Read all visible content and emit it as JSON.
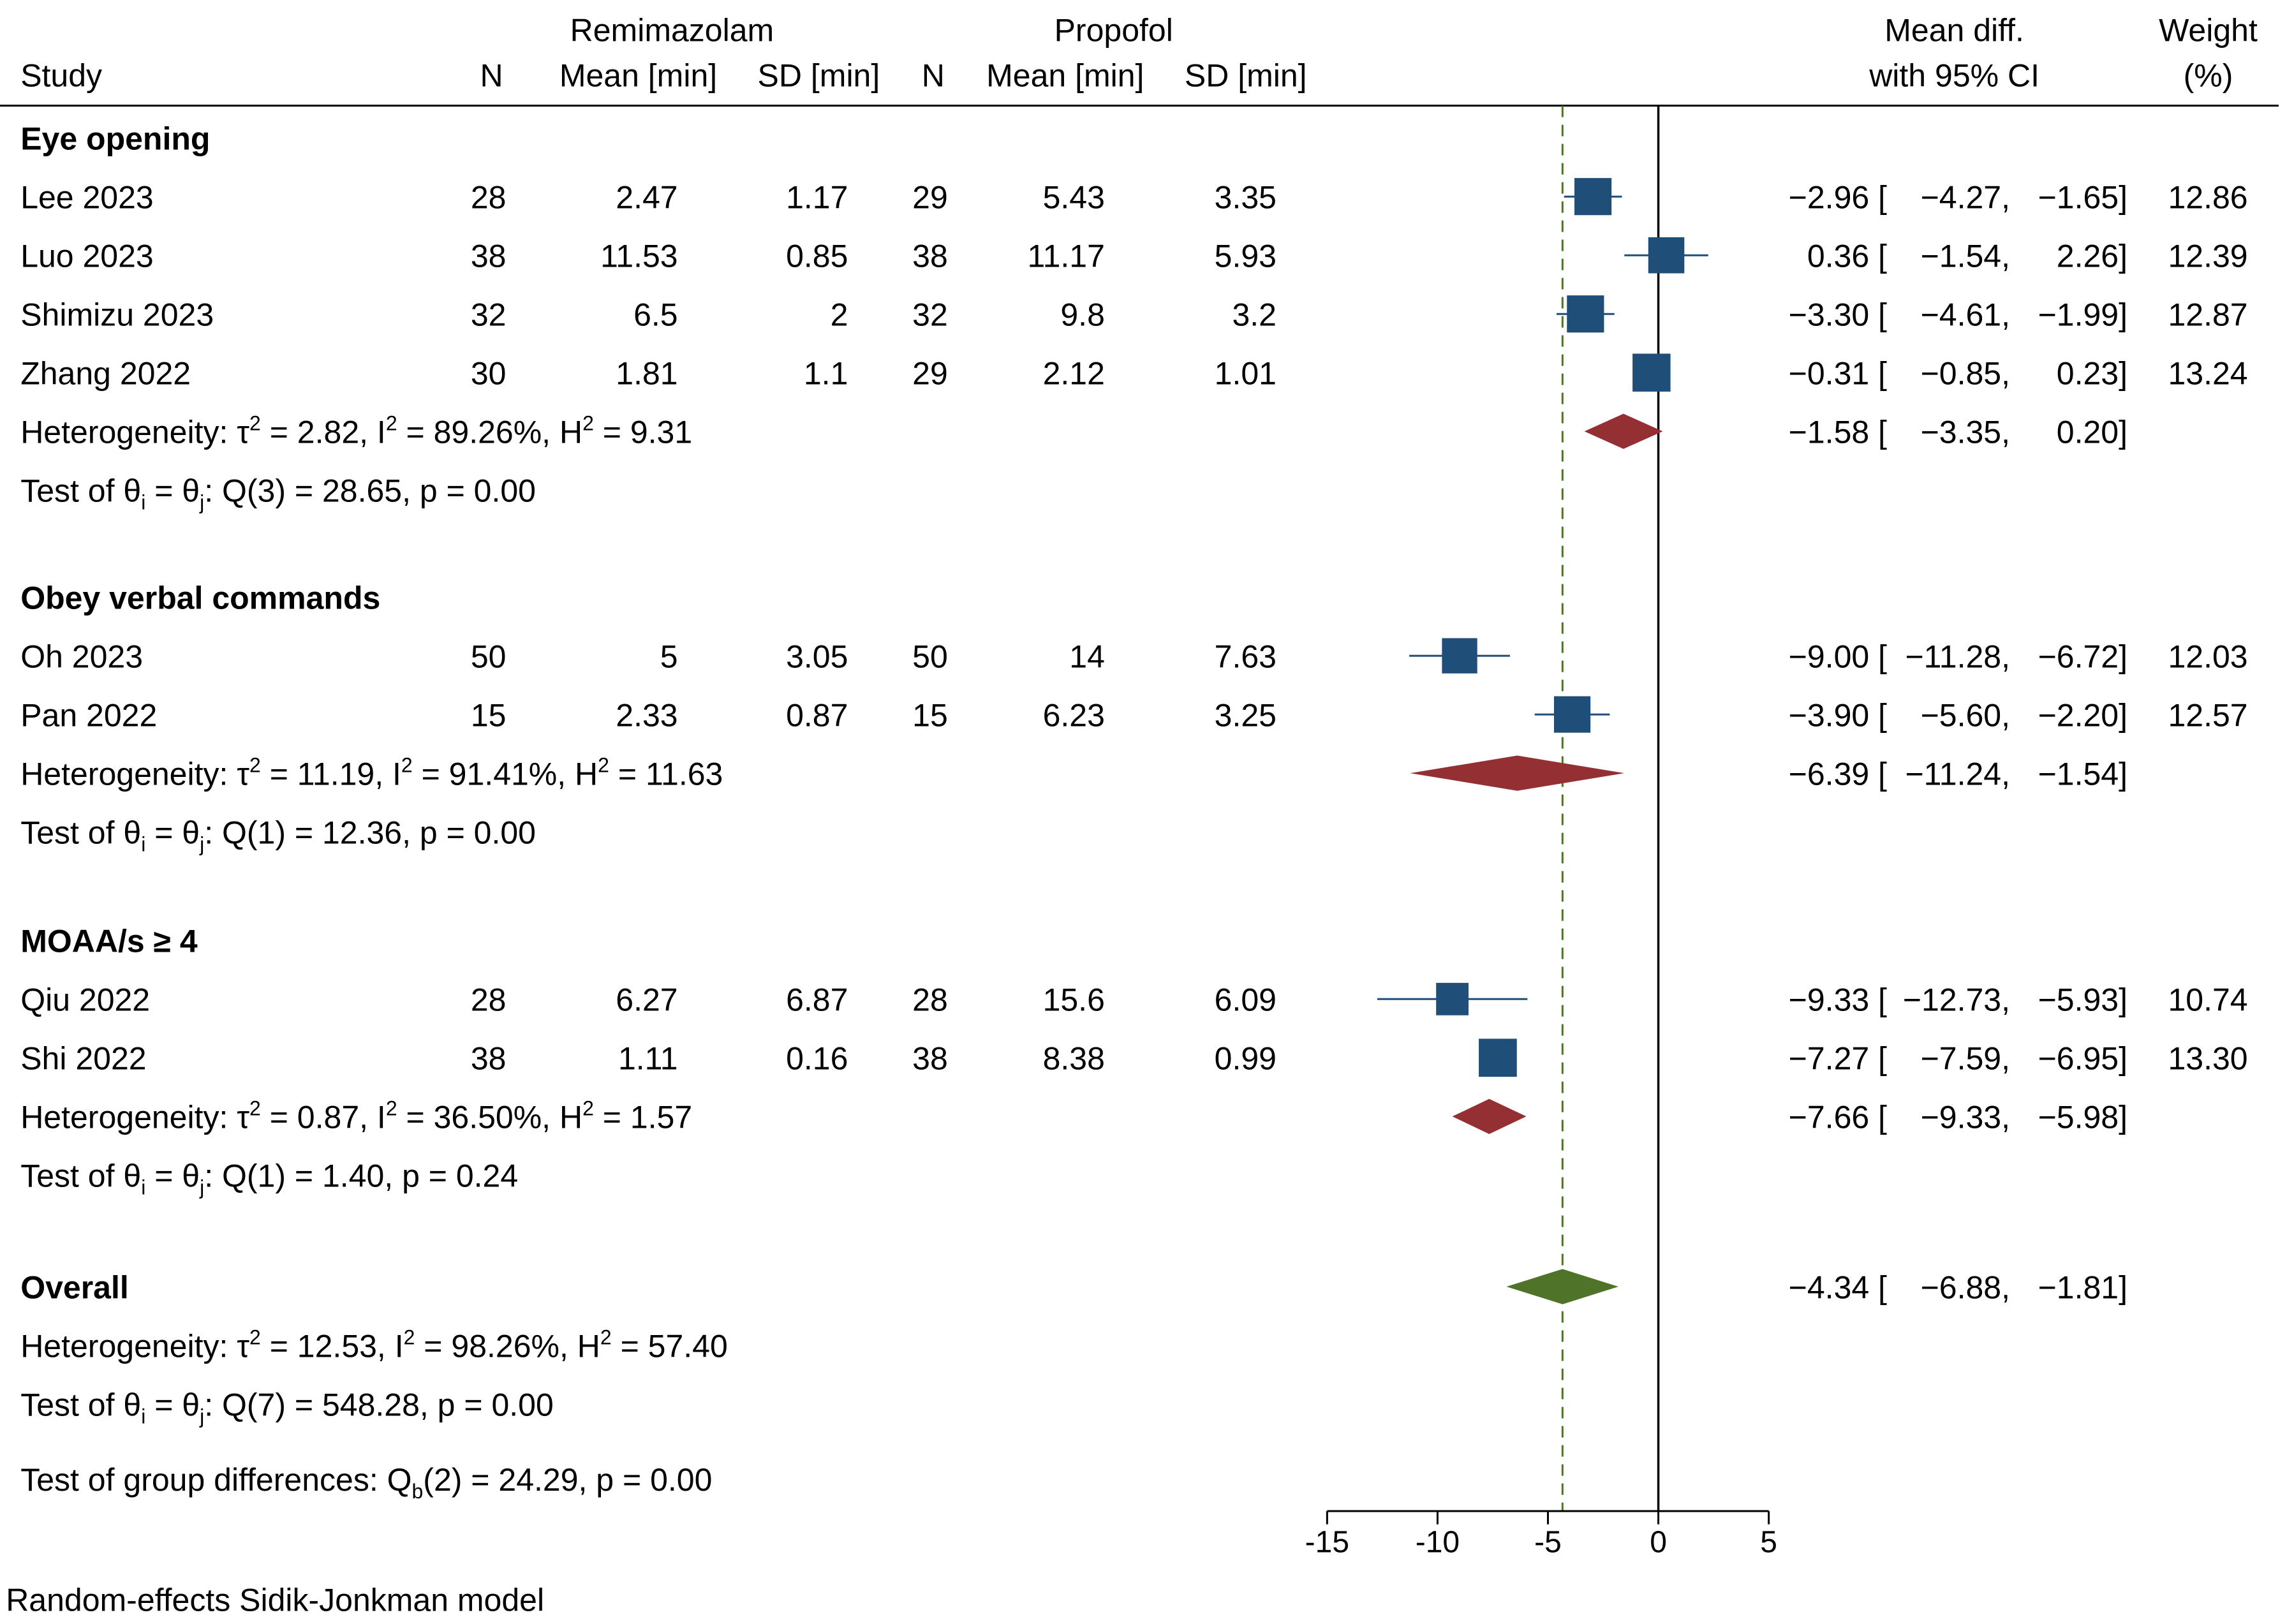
{
  "chart_data": {
    "type": "forest",
    "headers": {
      "study": "Study",
      "group1": "Remimazolam",
      "group2": "Propofol",
      "n": "N",
      "mean": "Mean [min]",
      "sd": "SD [min]",
      "effect_line1": "Mean diff.",
      "effect_line2": "with 95% CI",
      "weight_line1": "Weight",
      "weight_line2": "(%)"
    },
    "groups": [
      {
        "name": "Eye opening",
        "studies": [
          {
            "study": "Lee 2023",
            "n1": "28",
            "mean1": "2.47",
            "sd1": "1.17",
            "n2": "29",
            "mean2": "5.43",
            "sd2": "3.35",
            "md": -2.96,
            "lo": -4.27,
            "hi": -1.65,
            "md_text": "−2.96",
            "lo_text": "−4.27,",
            "hi_text": "−1.65]",
            "weight": "12.86"
          },
          {
            "study": "Luo 2023",
            "n1": "38",
            "mean1": "11.53",
            "sd1": "0.85",
            "n2": "38",
            "mean2": "11.17",
            "sd2": "5.93",
            "md": 0.36,
            "lo": -1.54,
            "hi": 2.26,
            "md_text": "0.36",
            "lo_text": "−1.54,",
            "hi_text": "2.26]",
            "weight": "12.39"
          },
          {
            "study": "Shimizu 2023",
            "n1": "32",
            "mean1": "6.5",
            "sd1": "2",
            "n2": "32",
            "mean2": "9.8",
            "sd2": "3.2",
            "md": -3.3,
            "lo": -4.61,
            "hi": -1.99,
            "md_text": "−3.30",
            "lo_text": "−4.61,",
            "hi_text": "−1.99]",
            "weight": "12.87"
          },
          {
            "study": "Zhang 2022",
            "n1": "30",
            "mean1": "1.81",
            "sd1": "1.1",
            "n2": "29",
            "mean2": "2.12",
            "sd2": "1.01",
            "md": -0.31,
            "lo": -0.85,
            "hi": 0.23,
            "md_text": "−0.31",
            "lo_text": "−0.85,",
            "hi_text": "0.23]",
            "weight": "13.24"
          }
        ],
        "pooled": {
          "md": -1.58,
          "lo": -3.35,
          "hi": 0.2,
          "md_text": "−1.58",
          "lo_text": "−3.35,",
          "hi_text": "0.20]"
        },
        "heterogeneity": {
          "a": "Heterogeneity: τ",
          "b": " = 2.82, I",
          "c": " = 89.26%, H",
          "d": " = 9.31"
        },
        "test": {
          "a": "Test of θ",
          "b": " = θ",
          "c": ": Q(3) = 28.65, p = 0.00"
        }
      },
      {
        "name": "Obey verbal commands",
        "studies": [
          {
            "study": "Oh 2023",
            "n1": "50",
            "mean1": "5",
            "sd1": "3.05",
            "n2": "50",
            "mean2": "14",
            "sd2": "7.63",
            "md": -9.0,
            "lo": -11.28,
            "hi": -6.72,
            "md_text": "−9.00",
            "lo_text": "−11.28,",
            "hi_text": "−6.72]",
            "weight": "12.03"
          },
          {
            "study": "Pan 2022",
            "n1": "15",
            "mean1": "2.33",
            "sd1": "0.87",
            "n2": "15",
            "mean2": "6.23",
            "sd2": "3.25",
            "md": -3.9,
            "lo": -5.6,
            "hi": -2.2,
            "md_text": "−3.90",
            "lo_text": "−5.60,",
            "hi_text": "−2.20]",
            "weight": "12.57"
          }
        ],
        "pooled": {
          "md": -6.39,
          "lo": -11.24,
          "hi": -1.54,
          "md_text": "−6.39",
          "lo_text": "−11.24,",
          "hi_text": "−1.54]"
        },
        "heterogeneity": {
          "a": "Heterogeneity: τ",
          "b": " = 11.19, I",
          "c": " = 91.41%, H",
          "d": " = 11.63"
        },
        "test": {
          "a": "Test of θ",
          "b": " = θ",
          "c": ": Q(1) = 12.36, p = 0.00"
        }
      },
      {
        "name": "MOAA/s ≥ 4",
        "studies": [
          {
            "study": "Qiu 2022",
            "n1": "28",
            "mean1": "6.27",
            "sd1": "6.87",
            "n2": "28",
            "mean2": "15.6",
            "sd2": "6.09",
            "md": -9.33,
            "lo": -12.73,
            "hi": -5.93,
            "md_text": "−9.33",
            "lo_text": "−12.73,",
            "hi_text": "−5.93]",
            "weight": "10.74"
          },
          {
            "study": "Shi 2022",
            "n1": "38",
            "mean1": "1.11",
            "sd1": "0.16",
            "n2": "38",
            "mean2": "8.38",
            "sd2": "0.99",
            "md": -7.27,
            "lo": -7.59,
            "hi": -6.95,
            "md_text": "−7.27",
            "lo_text": "−7.59,",
            "hi_text": "−6.95]",
            "weight": "13.30"
          }
        ],
        "pooled": {
          "md": -7.66,
          "lo": -9.33,
          "hi": -5.98,
          "md_text": "−7.66",
          "lo_text": "−9.33,",
          "hi_text": "−5.98]"
        },
        "heterogeneity": {
          "a": "Heterogeneity: τ",
          "b": " = 0.87, I",
          "c": " = 36.50%, H",
          "d": " = 1.57"
        },
        "test": {
          "a": "Test of θ",
          "b": " = θ",
          "c": ": Q(1) = 1.40, p = 0.24"
        }
      }
    ],
    "overall": {
      "label": "Overall",
      "md": -4.34,
      "lo": -6.88,
      "hi": -1.81,
      "md_text": "−4.34",
      "lo_text": "−6.88,",
      "hi_text": "−1.81]",
      "heterogeneity": {
        "a": "Heterogeneity: τ",
        "b": " = 12.53, I",
        "c": " = 98.26%, H",
        "d": " = 57.40"
      },
      "test": {
        "a": "Test of θ",
        "b": " = θ",
        "c": ": Q(7) = 548.28, p = 0.00"
      },
      "group_diff": {
        "a": "Test of group differences: Q",
        "b": "(2) = 24.29, p = 0.00"
      }
    },
    "symbols": {
      "sub_i": "i",
      "sub_j": "j",
      "sub_b": "b",
      "sup_2": "2",
      "bracket_open": "["
    },
    "x_axis": {
      "min": -15,
      "max": 5,
      "ticks": [
        -15,
        -10,
        -5,
        0,
        5
      ],
      "tick_labels": [
        "-15",
        "-10",
        "-5",
        "0",
        "5"
      ]
    },
    "null_line": 0,
    "overall_reference": -4.34,
    "footnote": "Random-effects Sidik-Jonkman model",
    "colors": {
      "study_marker": "#1f4e79",
      "group_diamond": "#943034",
      "overall_diamond": "#4f7328",
      "reference_line": "#4f7328",
      "null_line": "#000000"
    }
  }
}
